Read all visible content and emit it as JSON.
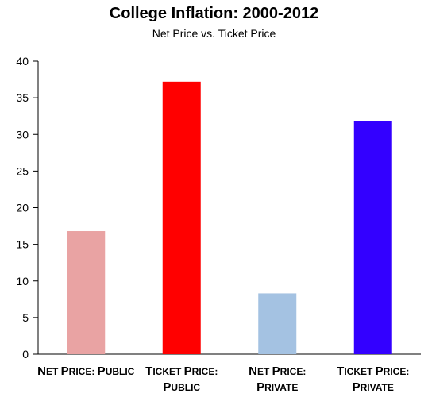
{
  "chart_data": {
    "type": "bar",
    "title": "College Inflation: 2000-2012",
    "subtitle": "Net Price vs. Ticket Price",
    "xlabel": "",
    "ylabel": "",
    "ylim": [
      0,
      40
    ],
    "yticks": [
      0,
      5,
      10,
      15,
      20,
      25,
      30,
      35,
      40
    ],
    "grid": false,
    "legend": "none",
    "categories": [
      [
        "Net Price: Public"
      ],
      [
        "Ticket Price:",
        "Public"
      ],
      [
        "Net Price:",
        "Private"
      ],
      [
        "Ticket Price:",
        "Private"
      ]
    ],
    "values": [
      16.8,
      37.2,
      8.3,
      31.8
    ],
    "colors": [
      "#e9a3a3",
      "#ff0000",
      "#a4c2e2",
      "#3300ff"
    ]
  }
}
